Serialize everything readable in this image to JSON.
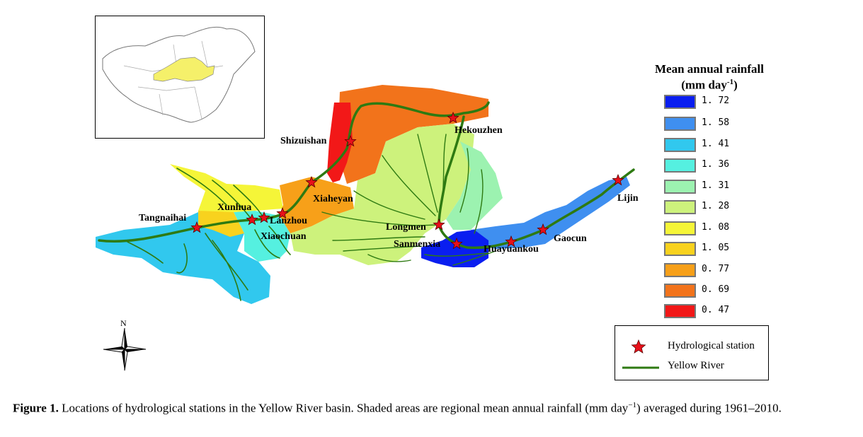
{
  "legend": {
    "title_line1": "Mean annual rainfall",
    "title_line2_prefix": "(mm day",
    "title_line2_sup": "-1",
    "title_line2_suffix": ")",
    "items": [
      {
        "value": "1. 72",
        "color": "#0a1ef0"
      },
      {
        "value": "1. 58",
        "color": "#3f8ff0"
      },
      {
        "value": "1. 41",
        "color": "#31c8ee"
      },
      {
        "value": "1. 36",
        "color": "#55f0e0"
      },
      {
        "value": "1. 31",
        "color": "#9cf2b0"
      },
      {
        "value": "1. 28",
        "color": "#cdf27c"
      },
      {
        "value": "1. 08",
        "color": "#f5f538"
      },
      {
        "value": "1. 05",
        "color": "#f8d21e"
      },
      {
        "value": "0. 77",
        "color": "#f7a019"
      },
      {
        "value": "0. 69",
        "color": "#f2731b"
      },
      {
        "value": "0. 47",
        "color": "#f21818"
      }
    ]
  },
  "key": {
    "station_label": "Hydrological station",
    "river_label": "Yellow River",
    "star_color": "#e8101a",
    "river_color": "#2e7a12"
  },
  "stations": [
    {
      "name": "Tangnaihai"
    },
    {
      "name": "Xunhua"
    },
    {
      "name": "Xiaochuan"
    },
    {
      "name": "Lanzhou"
    },
    {
      "name": "Xiaheyan"
    },
    {
      "name": "Shizuishan"
    },
    {
      "name": "Hekouzhen"
    },
    {
      "name": "Longmen"
    },
    {
      "name": "Sanmenxia"
    },
    {
      "name": "Huayuankou"
    },
    {
      "name": "Gaocun"
    },
    {
      "name": "Lijin"
    }
  ],
  "compass": {
    "north": "N"
  },
  "inset": {
    "highlight_color": "#f5f06a"
  },
  "caption": {
    "label": "Figure 1.",
    "text_before_sup": " Locations of hydrological stations in the Yellow River basin. Shaded areas are regional mean annual rainfall (mm day",
    "sup": "−1",
    "text_after_sup": ") averaged during 1961–2010."
  }
}
